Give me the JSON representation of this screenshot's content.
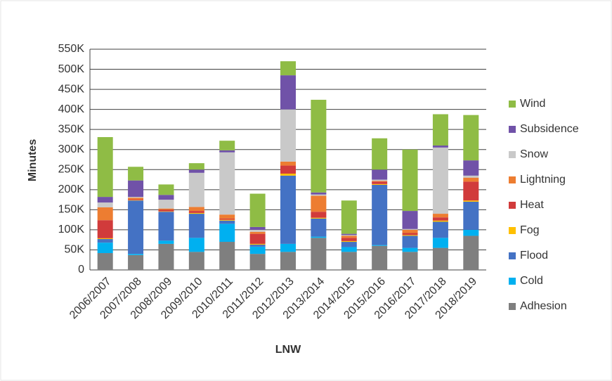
{
  "chart_data": {
    "type": "stacked-bar",
    "x_label": "LNW",
    "y_label": "Minutes",
    "categories": [
      "2006/2007",
      "2007/2008",
      "2008/2009",
      "2009/2010",
      "2010/2011",
      "2011/2012",
      "2012/2013",
      "2013/2014",
      "2014/2015",
      "2015/2016",
      "2016/2017",
      "2017/2018",
      "2018/2019"
    ],
    "series": [
      {
        "name": "Adhesion",
        "color": "#7f7f7f",
        "values": [
          42000,
          37000,
          65000,
          45000,
          70000,
          40000,
          45000,
          80000,
          45000,
          60000,
          45000,
          55000,
          85000
        ]
      },
      {
        "name": "Cold",
        "color": "#00b0f0",
        "values": [
          26000,
          3000,
          8000,
          35000,
          45000,
          18000,
          20000,
          3000,
          12000,
          2000,
          10000,
          25000,
          15000
        ]
      },
      {
        "name": "Flood",
        "color": "#4472c4",
        "values": [
          9000,
          133000,
          72000,
          60000,
          8000,
          5000,
          170000,
          45000,
          13000,
          150000,
          30000,
          40000,
          70000
        ]
      },
      {
        "name": "Fog",
        "color": "#ffc000",
        "values": [
          2000,
          1000,
          1000,
          2000,
          2000,
          2000,
          5000,
          2000,
          2000,
          2000,
          2000,
          3000,
          3000
        ]
      },
      {
        "name": "Heat",
        "color": "#d13b3b",
        "values": [
          45000,
          2000,
          4000,
          5000,
          3000,
          25000,
          20000,
          15000,
          8000,
          6000,
          5000,
          8000,
          47000
        ]
      },
      {
        "name": "Lightning",
        "color": "#ed7d31",
        "values": [
          32000,
          4000,
          3000,
          10000,
          10000,
          5000,
          10000,
          40000,
          5000,
          2000,
          8000,
          9000,
          10000
        ]
      },
      {
        "name": "Snow",
        "color": "#c9c9c9",
        "values": [
          12000,
          2000,
          22000,
          85000,
          155000,
          5000,
          130000,
          3000,
          2000,
          3000,
          2000,
          165000,
          5000
        ]
      },
      {
        "name": "Subsidence",
        "color": "#7052a8",
        "values": [
          14000,
          41000,
          12000,
          8000,
          5000,
          7000,
          85000,
          5000,
          3000,
          25000,
          45000,
          5000,
          38000
        ]
      },
      {
        "name": "Wind",
        "color": "#8fbc45",
        "values": [
          149000,
          34000,
          26000,
          16000,
          24000,
          83000,
          35000,
          231000,
          83000,
          78000,
          153000,
          78000,
          113000
        ]
      }
    ],
    "ylim": [
      0,
      550000
    ],
    "yticks": [
      0,
      {
        "value": 50000,
        "label": "50K"
      },
      {
        "value": 100000,
        "label": "100K"
      },
      {
        "value": 150000,
        "label": "150K"
      },
      {
        "value": 200000,
        "label": "200K"
      },
      {
        "value": 250000,
        "label": "250K"
      },
      {
        "value": 300000,
        "label": "300K"
      },
      {
        "value": 350000,
        "label": "350K"
      },
      {
        "value": 400000,
        "label": "400K"
      },
      {
        "value": 450000,
        "label": "450K"
      },
      {
        "value": 500000,
        "label": "500K"
      },
      {
        "value": 550000,
        "label": "550K"
      }
    ],
    "grid": true,
    "legend_position": "right"
  }
}
